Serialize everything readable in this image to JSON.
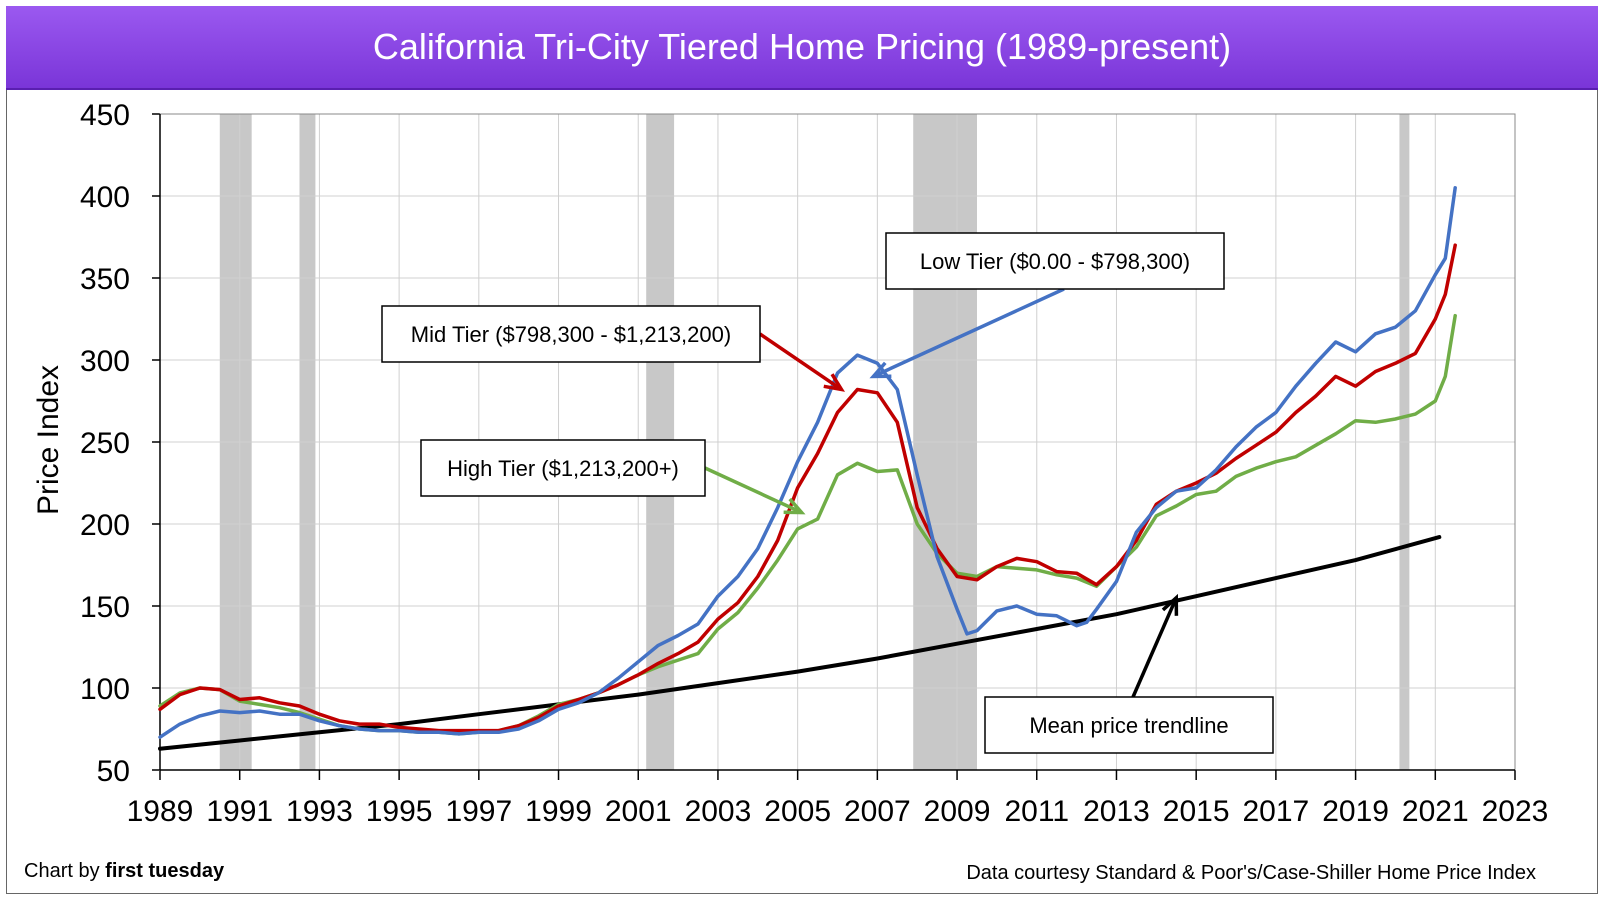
{
  "header": {
    "title": "California Tri-City Tiered Home Pricing (1989-present)"
  },
  "footer": {
    "credit_prefix": "Chart by ",
    "credit_brand": "first tuesday",
    "source": "Data courtesy Standard & Poor's/Case-Shiller Home Price Index"
  },
  "chart_data": {
    "type": "line",
    "title": "California Tri-City Tiered Home Pricing (1989-present)",
    "ylabel": "Price Index",
    "xlabel": "",
    "xlim": [
      1989,
      2023
    ],
    "ylim": [
      50,
      450
    ],
    "xticks": [
      "1989",
      "1991",
      "1993",
      "1995",
      "1997",
      "1999",
      "2001",
      "2003",
      "2005",
      "2007",
      "2009",
      "2011",
      "2013",
      "2015",
      "2017",
      "2019",
      "2021",
      "2023"
    ],
    "yticks": [
      "50",
      "100",
      "150",
      "200",
      "250",
      "300",
      "350",
      "400",
      "450"
    ],
    "grid": true,
    "recessions": [
      [
        1990.5,
        1991.3
      ],
      [
        1992.5,
        1992.9
      ],
      [
        2001.2,
        2001.9
      ],
      [
        2007.9,
        2009.5
      ],
      [
        2020.1,
        2020.35
      ]
    ],
    "colors": {
      "low": "#4472c4",
      "mid": "#c00000",
      "high": "#70ad47",
      "trend": "#000000",
      "recession": "#c8c8c8",
      "grid": "#d0d0d0"
    },
    "series": [
      {
        "key": "low",
        "name": "Low Tier ($0.00 - $798,300)",
        "x": [
          1989,
          1989.5,
          1990,
          1990.5,
          1991,
          1991.5,
          1992,
          1992.5,
          1993,
          1993.5,
          1994,
          1994.5,
          1995,
          1995.5,
          1996,
          1996.5,
          1997,
          1997.5,
          1998,
          1998.5,
          1999,
          1999.5,
          2000,
          2000.5,
          2001,
          2001.5,
          2002,
          2002.5,
          2003,
          2003.5,
          2004,
          2004.5,
          2005,
          2005.5,
          2006,
          2006.5,
          2007,
          2007.5,
          2008,
          2008.5,
          2009,
          2009.25,
          2009.5,
          2010,
          2010.5,
          2011,
          2011.5,
          2012,
          2012.25,
          2012.5,
          2013,
          2013.5,
          2014,
          2014.5,
          2015,
          2015.5,
          2016,
          2016.5,
          2017,
          2017.5,
          2018,
          2018.5,
          2019,
          2019.5,
          2020,
          2020.5,
          2021,
          2021.25,
          2021.5
        ],
        "y": [
          70,
          78,
          83,
          86,
          85,
          86,
          84,
          84,
          80,
          77,
          75,
          74,
          74,
          73,
          73,
          72,
          73,
          73,
          75,
          80,
          87,
          91,
          97,
          106,
          116,
          126,
          132,
          139,
          156,
          168,
          185,
          210,
          238,
          262,
          292,
          303,
          298,
          282,
          230,
          180,
          148,
          133,
          135,
          147,
          150,
          145,
          144,
          138,
          140,
          148,
          165,
          195,
          210,
          220,
          222,
          233,
          247,
          259,
          268,
          284,
          298,
          311,
          305,
          316,
          320,
          330,
          352,
          362,
          405
        ]
      },
      {
        "key": "mid",
        "name": "Mid Tier ($798,300 - $1,213,200)",
        "x": [
          1989,
          1989.5,
          1990,
          1990.5,
          1991,
          1991.5,
          1992,
          1992.5,
          1993,
          1993.5,
          1994,
          1994.5,
          1995,
          1995.5,
          1996,
          1996.5,
          1997,
          1997.5,
          1998,
          1998.5,
          1999,
          1999.5,
          2000,
          2000.5,
          2001,
          2001.5,
          2002,
          2002.5,
          2003,
          2003.5,
          2004,
          2004.5,
          2005,
          2005.5,
          2006,
          2006.5,
          2007,
          2007.5,
          2008,
          2008.5,
          2009,
          2009.5,
          2010,
          2010.5,
          2011,
          2011.5,
          2012,
          2012.5,
          2013,
          2013.5,
          2014,
          2014.5,
          2015,
          2015.5,
          2016,
          2016.5,
          2017,
          2017.5,
          2018,
          2018.5,
          2019,
          2019.5,
          2020,
          2020.5,
          2021,
          2021.25,
          2021.5
        ],
        "y": [
          87,
          96,
          100,
          99,
          93,
          94,
          91,
          89,
          84,
          80,
          78,
          78,
          76,
          75,
          74,
          74,
          74,
          74,
          77,
          82,
          89,
          93,
          97,
          102,
          108,
          115,
          121,
          128,
          142,
          152,
          168,
          190,
          222,
          243,
          268,
          282,
          280,
          262,
          210,
          185,
          168,
          166,
          174,
          179,
          177,
          171,
          170,
          163,
          174,
          190,
          212,
          220,
          225,
          231,
          240,
          248,
          256,
          268,
          278,
          290,
          284,
          293,
          298,
          304,
          325,
          340,
          370
        ]
      },
      {
        "key": "high",
        "name": "High Tier ($1,213,200+)",
        "x": [
          1989,
          1989.5,
          1990,
          1990.5,
          1991,
          1991.5,
          1992,
          1992.5,
          1993,
          1993.5,
          1994,
          1994.5,
          1995,
          1995.5,
          1996,
          1996.5,
          1997,
          1997.5,
          1998,
          1998.5,
          1999,
          1999.5,
          2000,
          2000.5,
          2001,
          2001.5,
          2002,
          2002.5,
          2003,
          2003.5,
          2004,
          2004.5,
          2005,
          2005.5,
          2006,
          2006.5,
          2007,
          2007.5,
          2008,
          2008.5,
          2009,
          2009.5,
          2010,
          2010.5,
          2011,
          2011.5,
          2012,
          2012.5,
          2013,
          2013.5,
          2014,
          2014.5,
          2015,
          2015.5,
          2016,
          2016.5,
          2017,
          2017.5,
          2018,
          2018.5,
          2019,
          2019.5,
          2020,
          2020.5,
          2021,
          2021.25,
          2021.5
        ],
        "y": [
          89,
          97,
          100,
          99,
          92,
          90,
          88,
          85,
          81,
          77,
          75,
          74,
          74,
          73,
          73,
          72,
          73,
          74,
          77,
          83,
          90,
          93,
          97,
          102,
          108,
          113,
          117,
          121,
          136,
          146,
          161,
          178,
          197,
          203,
          230,
          237,
          232,
          233,
          200,
          182,
          170,
          168,
          174,
          173,
          172,
          169,
          167,
          162,
          174,
          186,
          205,
          211,
          218,
          220,
          229,
          234,
          238,
          241,
          248,
          255,
          263,
          262,
          264,
          267,
          275,
          290,
          327
        ]
      },
      {
        "key": "trend",
        "name": "Mean price trendline",
        "x": [
          1989,
          1991,
          1993,
          1995,
          1997,
          1999,
          2001,
          2003,
          2005,
          2007,
          2009,
          2011,
          2013,
          2015,
          2017,
          2019,
          2021.1
        ],
        "y": [
          63,
          68,
          73,
          78,
          84,
          90,
          96,
          103,
          110,
          118,
          127,
          136,
          145,
          156,
          167,
          178,
          192
        ]
      }
    ],
    "annotations": [
      {
        "text": "Low Tier ($0.00 - $798,300)",
        "target": [
          2006.9,
          290
        ]
      },
      {
        "text": "Mid Tier ($798,300 - $1,213,200)",
        "target": [
          2006.1,
          282
        ]
      },
      {
        "text": "High Tier ($1,213,200+)",
        "target": [
          2005.1,
          207
        ]
      },
      {
        "text": "Mean price trendline",
        "target": [
          2014.5,
          155
        ]
      }
    ]
  }
}
